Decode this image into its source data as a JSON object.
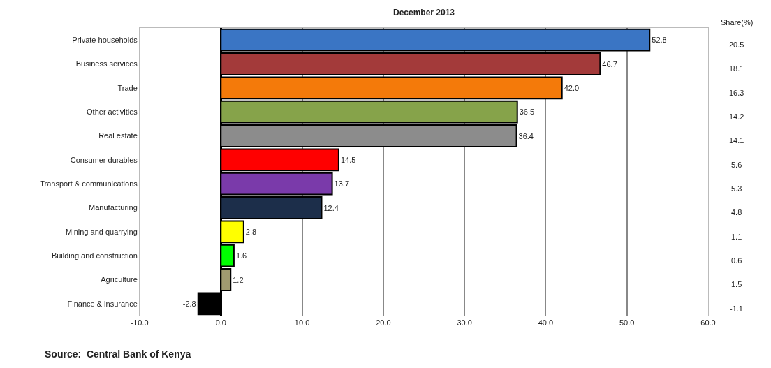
{
  "chart_data": {
    "type": "bar",
    "orientation": "horizontal",
    "title": "December 2013",
    "categories": [
      "Private households",
      "Business services",
      "Trade",
      "Other activities",
      "Real estate",
      "Consumer durables",
      "Transport & communications",
      "Manufacturing",
      "Mining and quarrying",
      "Building and construction",
      "Agriculture",
      "Finance & insurance"
    ],
    "values": [
      52.8,
      46.7,
      42.0,
      36.5,
      36.4,
      14.5,
      13.7,
      12.4,
      2.8,
      1.6,
      1.2,
      -2.8
    ],
    "colors": [
      "#3a75c4",
      "#a33a3a",
      "#f47a0a",
      "#86a34a",
      "#8c8c8c",
      "#ff0000",
      "#7a3aaa",
      "#1c2e4a",
      "#ffff00",
      "#00ff00",
      "#a09a70",
      "#000000"
    ],
    "value_labels": [
      "52.8",
      "46.7",
      "42.0",
      "36.5",
      "36.4",
      "14.5",
      "13.7",
      "12.4",
      "2.8",
      "1.6",
      "1.2",
      "-2.8"
    ],
    "xlim": [
      -10,
      60
    ],
    "xticks": [
      {
        "value": -10,
        "label": "-10.0"
      },
      {
        "value": 0,
        "label": "0.0"
      },
      {
        "value": 10,
        "label": "10.0"
      },
      {
        "value": 20,
        "label": "20.0"
      },
      {
        "value": 30,
        "label": "30.0"
      },
      {
        "value": 40,
        "label": "40.0"
      },
      {
        "value": 50,
        "label": "50.0"
      },
      {
        "value": 60,
        "label": "60.0"
      }
    ],
    "grid": "x",
    "legend": false,
    "annotations": [
      "Share(%)",
      "20.5",
      "18.1",
      "16.3",
      "14.2",
      "14.1",
      "5.6",
      "5.3",
      "4.8",
      "1.1",
      "0.6",
      "1.5",
      "-1.1",
      "Source:  Central Bank of Kenya"
    ]
  }
}
